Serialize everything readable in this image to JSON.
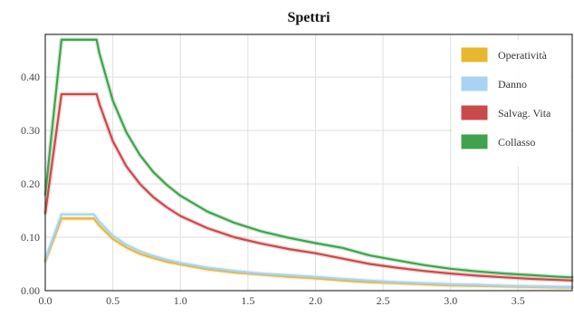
{
  "chart_data": {
    "type": "line",
    "title": "Spettri",
    "xlabel": "",
    "ylabel": "",
    "xlim": [
      0.0,
      3.9
    ],
    "ylim": [
      0.0,
      0.48
    ],
    "x_ticks": [
      "0.0",
      "0.5",
      "1.0",
      "1.5",
      "2.0",
      "2.5",
      "3.0",
      "3.5"
    ],
    "y_ticks": [
      "0.00",
      "0.10",
      "0.20",
      "0.30",
      "0.40"
    ],
    "grid": true,
    "legend_position": "top-right",
    "series": [
      {
        "name": "Operatività",
        "color": "#e8b62f",
        "x": [
          0.0,
          0.12,
          0.15,
          0.2,
          0.25,
          0.3,
          0.36,
          0.4,
          0.5,
          0.6,
          0.7,
          0.8,
          0.9,
          1.0,
          1.2,
          1.4,
          1.6,
          1.8,
          2.0,
          2.2,
          2.4,
          2.6,
          2.8,
          3.0,
          3.2,
          3.4,
          3.6,
          3.8,
          3.9
        ],
        "y": [
          0.055,
          0.135,
          0.135,
          0.135,
          0.135,
          0.135,
          0.135,
          0.122,
          0.097,
          0.081,
          0.069,
          0.061,
          0.054,
          0.049,
          0.04,
          0.034,
          0.03,
          0.026,
          0.023,
          0.019,
          0.016,
          0.014,
          0.012,
          0.01,
          0.009,
          0.008,
          0.007,
          0.006,
          0.006
        ]
      },
      {
        "name": "Danno",
        "color": "#a9d3f2",
        "x": [
          0.0,
          0.12,
          0.15,
          0.2,
          0.25,
          0.3,
          0.36,
          0.4,
          0.5,
          0.6,
          0.7,
          0.8,
          0.9,
          1.0,
          1.2,
          1.4,
          1.6,
          1.8,
          2.0,
          2.2,
          2.4,
          2.6,
          2.8,
          3.0,
          3.2,
          3.4,
          3.6,
          3.8,
          3.9
        ],
        "y": [
          0.058,
          0.143,
          0.143,
          0.143,
          0.143,
          0.143,
          0.143,
          0.129,
          0.103,
          0.086,
          0.074,
          0.065,
          0.058,
          0.052,
          0.043,
          0.037,
          0.032,
          0.029,
          0.026,
          0.022,
          0.019,
          0.016,
          0.014,
          0.012,
          0.011,
          0.009,
          0.008,
          0.007,
          0.007
        ]
      },
      {
        "name": "Salvag. Vita",
        "color": "#c94a4a",
        "x": [
          0.0,
          0.12,
          0.15,
          0.2,
          0.25,
          0.3,
          0.38,
          0.4,
          0.5,
          0.6,
          0.7,
          0.8,
          0.9,
          1.0,
          1.2,
          1.4,
          1.6,
          1.8,
          2.0,
          2.2,
          2.4,
          2.6,
          2.8,
          3.0,
          3.2,
          3.4,
          3.6,
          3.8,
          3.9
        ],
        "y": [
          0.145,
          0.368,
          0.368,
          0.368,
          0.368,
          0.368,
          0.368,
          0.35,
          0.28,
          0.233,
          0.2,
          0.175,
          0.156,
          0.14,
          0.117,
          0.1,
          0.088,
          0.078,
          0.07,
          0.06,
          0.05,
          0.043,
          0.037,
          0.032,
          0.028,
          0.025,
          0.022,
          0.02,
          0.019
        ]
      },
      {
        "name": "Collasso",
        "color": "#3fa34d",
        "x": [
          0.0,
          0.12,
          0.15,
          0.2,
          0.25,
          0.3,
          0.38,
          0.4,
          0.5,
          0.6,
          0.7,
          0.8,
          0.9,
          1.0,
          1.2,
          1.4,
          1.6,
          1.8,
          2.0,
          2.2,
          2.4,
          2.6,
          2.8,
          3.0,
          3.2,
          3.4,
          3.6,
          3.8,
          3.9
        ],
        "y": [
          0.18,
          0.47,
          0.47,
          0.47,
          0.47,
          0.47,
          0.47,
          0.445,
          0.356,
          0.297,
          0.254,
          0.222,
          0.198,
          0.178,
          0.148,
          0.127,
          0.111,
          0.099,
          0.089,
          0.08,
          0.066,
          0.057,
          0.048,
          0.041,
          0.036,
          0.032,
          0.029,
          0.026,
          0.025
        ]
      }
    ]
  }
}
